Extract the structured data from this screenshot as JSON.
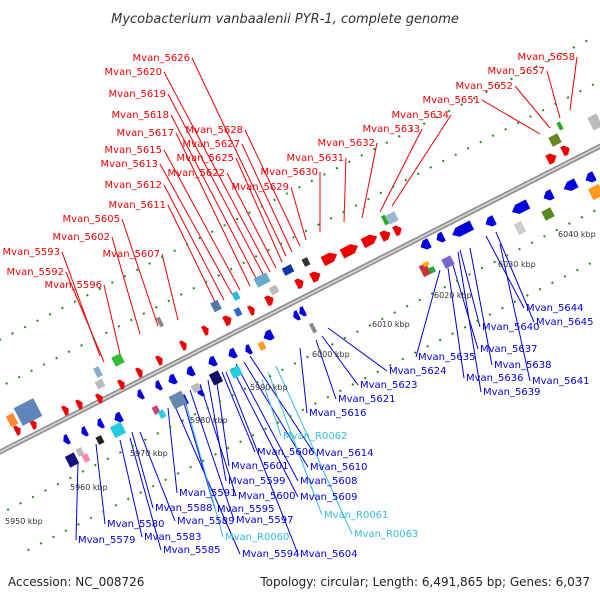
{
  "title": "Mycobacterium vanbaalenii PYR-1, complete genome",
  "footer": {
    "accession": "Accession: NC_008726",
    "summary": "Topology: circular; Length: 6,491,865 bp; Genes: 6,037"
  },
  "colors": {
    "top_strand": "#ee0000",
    "bottom_strand": "#0000dd",
    "rna": "#33bbdd",
    "backbone": "#999999",
    "tick": "#228822"
  },
  "ticks": [
    "5950 kbp",
    "5960 kbp",
    "5970 kbp",
    "5980 kbp",
    "5990 kbp",
    "6000 kbp",
    "6010 kbp",
    "6020 kbp",
    "6030 kbp",
    "6040 kbp"
  ],
  "top_labels": [
    "Mvan_5658",
    "Mvan_5657",
    "Mvan_5652",
    "Mvan_5651",
    "Mvan_5634",
    "Mvan_5633",
    "Mvan_5632",
    "Mvan_5631",
    "Mvan_5630",
    "Mvan_5629",
    "Mvan_5628",
    "Mvan_5627",
    "Mvan_5626",
    "Mvan_5625",
    "Mvan_5622",
    "Mvan_5620",
    "Mvan_5619",
    "Mvan_5618",
    "Mvan_5617",
    "Mvan_5615",
    "Mvan_5613",
    "Mvan_5612",
    "Mvan_5611",
    "Mvan_5607",
    "Mvan_5605",
    "Mvan_5602",
    "Mvan_5596",
    "Mvan_5593",
    "Mvan_5592"
  ],
  "bottom_labels_right": [
    "Mvan_5644",
    "Mvan_5645",
    "Mvan_5640",
    "Mvan_5641",
    "Mvan_5637",
    "Mvan_5638",
    "Mvan_5636",
    "Mvan_5639",
    "Mvan_5635",
    "Mvan_5624",
    "Mvan_5623",
    "Mvan_5621",
    "Mvan_5616"
  ],
  "bottom_labels_left": [
    "Mvan_5614",
    "Mvan_5610",
    "Mvan_5608",
    "Mvan_5609",
    "Mvan_5606",
    "Mvan_5601",
    "Mvan_5599",
    "Mvan_5600",
    "Mvan_5591",
    "Mvan_5597",
    "Mvan_5588",
    "Mvan_5595",
    "Mvan_5589",
    "Mvan_5580",
    "Mvan_5583",
    "Mvan_5579",
    "Mvan_5585",
    "Mvan_5594",
    "Mvan_5604"
  ],
  "rna_labels": [
    "Mvan_R0062",
    "Mvan_R0061",
    "Mvan_R0063",
    "Mvan_R0060"
  ]
}
